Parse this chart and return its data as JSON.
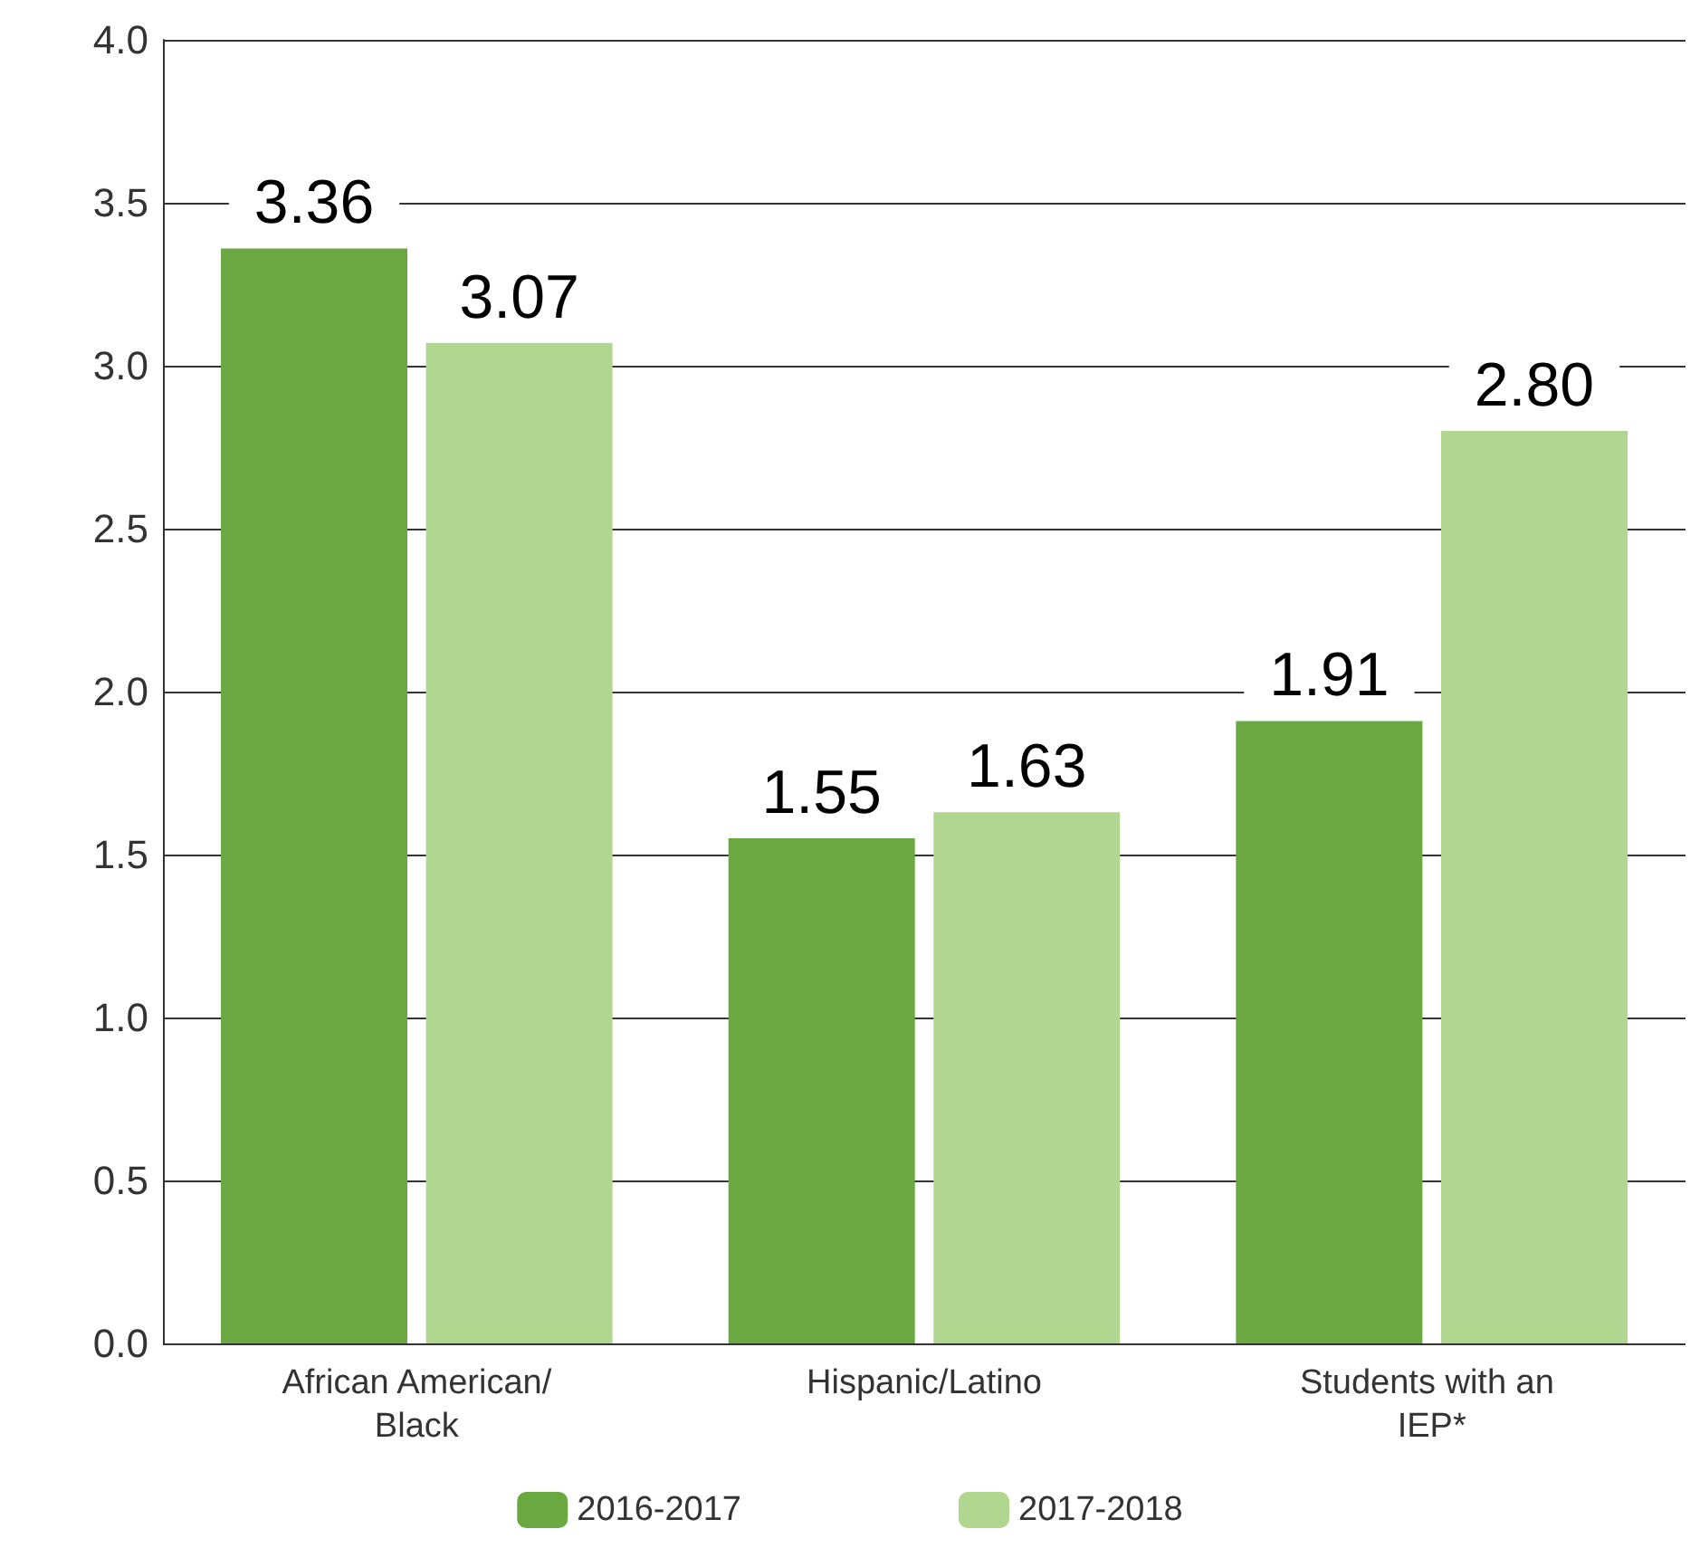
{
  "chart_data": {
    "type": "bar",
    "categories": [
      "African American/Black",
      "Hispanic/Latino",
      "Students with an IEP*"
    ],
    "series": [
      {
        "name": "2016-2017",
        "color": "#6aa842",
        "values": [
          3.36,
          1.55,
          1.91
        ],
        "value_labels": [
          "3.36",
          "1.55",
          "1.91"
        ]
      },
      {
        "name": "2017-2018",
        "color": "#b0d68f",
        "values": [
          3.07,
          1.63,
          2.8
        ],
        "value_labels": [
          "3.07",
          "1.63",
          "2.80"
        ]
      }
    ],
    "ylim": [
      0,
      4
    ],
    "yticks": [
      {
        "value": 0,
        "label": "0.0"
      },
      {
        "value": 0.5,
        "label": "0.5"
      },
      {
        "value": 1,
        "label": "1.0"
      },
      {
        "value": 1.5,
        "label": "1.5"
      },
      {
        "value": 2,
        "label": "2.0"
      },
      {
        "value": 2.5,
        "label": "2.5"
      },
      {
        "value": 3,
        "label": "3.0"
      },
      {
        "value": 3.5,
        "label": "3.5"
      },
      {
        "value": 4,
        "label": "4.0"
      }
    ],
    "grid": "y",
    "legend": "bottom"
  }
}
